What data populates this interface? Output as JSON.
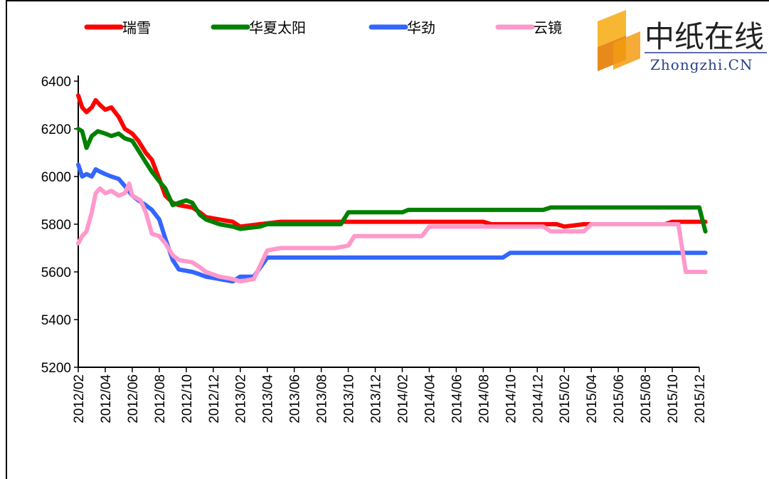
{
  "chart_data": {
    "type": "line",
    "title": "",
    "xlabel": "",
    "ylabel": "",
    "ylim": [
      5200,
      6400
    ],
    "yticks": [
      5200,
      5400,
      5600,
      5800,
      6000,
      6200,
      6400
    ],
    "xrange": [
      "2012-02",
      "2015-12"
    ],
    "xticks": [
      "2012/02",
      "2012/04",
      "2012/06",
      "2012/08",
      "2012/10",
      "2012/12",
      "2013/02",
      "2013/04",
      "2013/06",
      "2013/08",
      "2013/10",
      "2013/12",
      "2014/02",
      "2014/04",
      "2014/06",
      "2014/08",
      "2014/10",
      "2014/12",
      "2015/02",
      "2015/04",
      "2015/06",
      "2015/08",
      "2015/10",
      "2015/12"
    ],
    "grid": false,
    "legend_position": "top",
    "series": [
      {
        "name": "瑞雪",
        "color": "#ff0000",
        "points": [
          [
            "2012-02-01",
            6340
          ],
          [
            "2012-02-10",
            6290
          ],
          [
            "2012-02-20",
            6270
          ],
          [
            "2012-03-01",
            6290
          ],
          [
            "2012-03-10",
            6320
          ],
          [
            "2012-03-20",
            6300
          ],
          [
            "2012-04-01",
            6280
          ],
          [
            "2012-04-15",
            6290
          ],
          [
            "2012-05-01",
            6250
          ],
          [
            "2012-05-15",
            6200
          ],
          [
            "2012-06-01",
            6180
          ],
          [
            "2012-06-15",
            6150
          ],
          [
            "2012-07-01",
            6100
          ],
          [
            "2012-07-15",
            6070
          ],
          [
            "2012-08-01",
            5990
          ],
          [
            "2012-08-15",
            5920
          ],
          [
            "2012-09-01",
            5890
          ],
          [
            "2012-09-15",
            5880
          ],
          [
            "2012-10-15",
            5870
          ],
          [
            "2012-11-01",
            5850
          ],
          [
            "2012-11-15",
            5830
          ],
          [
            "2012-12-15",
            5820
          ],
          [
            "2013-01-15",
            5810
          ],
          [
            "2013-02-01",
            5790
          ],
          [
            "2013-03-15",
            5800
          ],
          [
            "2013-05-01",
            5810
          ],
          [
            "2014-08-01",
            5810
          ],
          [
            "2014-08-20",
            5800
          ],
          [
            "2015-01-15",
            5800
          ],
          [
            "2015-02-01",
            5790
          ],
          [
            "2015-03-15",
            5800
          ],
          [
            "2015-09-15",
            5800
          ],
          [
            "2015-10-01",
            5810
          ],
          [
            "2015-12-15",
            5810
          ]
        ]
      },
      {
        "name": "华夏太阳",
        "color": "#008000",
        "points": [
          [
            "2012-02-01",
            6200
          ],
          [
            "2012-02-10",
            6190
          ],
          [
            "2012-02-20",
            6120
          ],
          [
            "2012-03-01",
            6170
          ],
          [
            "2012-03-15",
            6190
          ],
          [
            "2012-04-01",
            6180
          ],
          [
            "2012-04-15",
            6170
          ],
          [
            "2012-05-01",
            6180
          ],
          [
            "2012-05-15",
            6160
          ],
          [
            "2012-06-01",
            6150
          ],
          [
            "2012-06-15",
            6110
          ],
          [
            "2012-07-01",
            6060
          ],
          [
            "2012-07-15",
            6020
          ],
          [
            "2012-08-01",
            5980
          ],
          [
            "2012-08-15",
            5950
          ],
          [
            "2012-09-01",
            5880
          ],
          [
            "2012-09-15",
            5890
          ],
          [
            "2012-10-01",
            5900
          ],
          [
            "2012-10-15",
            5890
          ],
          [
            "2012-11-01",
            5840
          ],
          [
            "2012-11-15",
            5820
          ],
          [
            "2012-12-15",
            5800
          ],
          [
            "2013-01-15",
            5790
          ],
          [
            "2013-02-01",
            5780
          ],
          [
            "2013-03-15",
            5790
          ],
          [
            "2013-04-01",
            5800
          ],
          [
            "2013-09-15",
            5800
          ],
          [
            "2013-10-01",
            5850
          ],
          [
            "2014-02-01",
            5850
          ],
          [
            "2014-02-15",
            5860
          ],
          [
            "2014-12-15",
            5860
          ],
          [
            "2015-01-01",
            5870
          ],
          [
            "2015-12-01",
            5870
          ],
          [
            "2015-12-15",
            5770
          ]
        ]
      },
      {
        "name": "华劲",
        "color": "#3366ff",
        "points": [
          [
            "2012-02-01",
            6050
          ],
          [
            "2012-02-10",
            6000
          ],
          [
            "2012-02-20",
            6010
          ],
          [
            "2012-03-01",
            6000
          ],
          [
            "2012-03-10",
            6030
          ],
          [
            "2012-03-20",
            6020
          ],
          [
            "2012-04-01",
            6010
          ],
          [
            "2012-04-15",
            6000
          ],
          [
            "2012-05-01",
            5990
          ],
          [
            "2012-05-15",
            5960
          ],
          [
            "2012-06-01",
            5920
          ],
          [
            "2012-06-15",
            5900
          ],
          [
            "2012-07-01",
            5880
          ],
          [
            "2012-07-15",
            5860
          ],
          [
            "2012-08-01",
            5820
          ],
          [
            "2012-08-15",
            5740
          ],
          [
            "2012-09-01",
            5650
          ],
          [
            "2012-09-15",
            5610
          ],
          [
            "2012-10-15",
            5600
          ],
          [
            "2012-11-01",
            5590
          ],
          [
            "2012-11-15",
            5580
          ],
          [
            "2012-12-15",
            5570
          ],
          [
            "2013-01-15",
            5560
          ],
          [
            "2013-02-01",
            5580
          ],
          [
            "2013-03-01",
            5580
          ],
          [
            "2013-04-01",
            5660
          ],
          [
            "2014-09-15",
            5660
          ],
          [
            "2014-10-01",
            5680
          ],
          [
            "2015-12-15",
            5680
          ]
        ]
      },
      {
        "name": "云镜",
        "color": "#ff99cc",
        "points": [
          [
            "2012-02-01",
            5720
          ],
          [
            "2012-02-10",
            5750
          ],
          [
            "2012-02-20",
            5770
          ],
          [
            "2012-03-01",
            5850
          ],
          [
            "2012-03-10",
            5930
          ],
          [
            "2012-03-20",
            5950
          ],
          [
            "2012-04-01",
            5930
          ],
          [
            "2012-04-15",
            5940
          ],
          [
            "2012-05-01",
            5920
          ],
          [
            "2012-05-15",
            5930
          ],
          [
            "2012-05-25",
            5970
          ],
          [
            "2012-06-01",
            5920
          ],
          [
            "2012-06-20",
            5900
          ],
          [
            "2012-07-01",
            5850
          ],
          [
            "2012-07-15",
            5760
          ],
          [
            "2012-08-01",
            5750
          ],
          [
            "2012-08-15",
            5720
          ],
          [
            "2012-09-01",
            5670
          ],
          [
            "2012-09-15",
            5650
          ],
          [
            "2012-10-15",
            5640
          ],
          [
            "2012-11-01",
            5620
          ],
          [
            "2012-11-15",
            5600
          ],
          [
            "2012-12-15",
            5580
          ],
          [
            "2013-01-15",
            5570
          ],
          [
            "2013-02-01",
            5560
          ],
          [
            "2013-03-01",
            5570
          ],
          [
            "2013-04-01",
            5690
          ],
          [
            "2013-05-01",
            5700
          ],
          [
            "2013-09-01",
            5700
          ],
          [
            "2013-10-01",
            5710
          ],
          [
            "2013-10-15",
            5750
          ],
          [
            "2014-03-15",
            5750
          ],
          [
            "2014-04-01",
            5790
          ],
          [
            "2014-06-01",
            5790
          ],
          [
            "2014-12-15",
            5790
          ],
          [
            "2015-01-01",
            5770
          ],
          [
            "2015-03-15",
            5770
          ],
          [
            "2015-04-01",
            5800
          ],
          [
            "2015-10-15",
            5800
          ],
          [
            "2015-11-01",
            5600
          ],
          [
            "2015-12-15",
            5600
          ]
        ]
      }
    ]
  },
  "watermark": {
    "cn": "中纸在线",
    "en": "Zhongzhi.CN"
  }
}
